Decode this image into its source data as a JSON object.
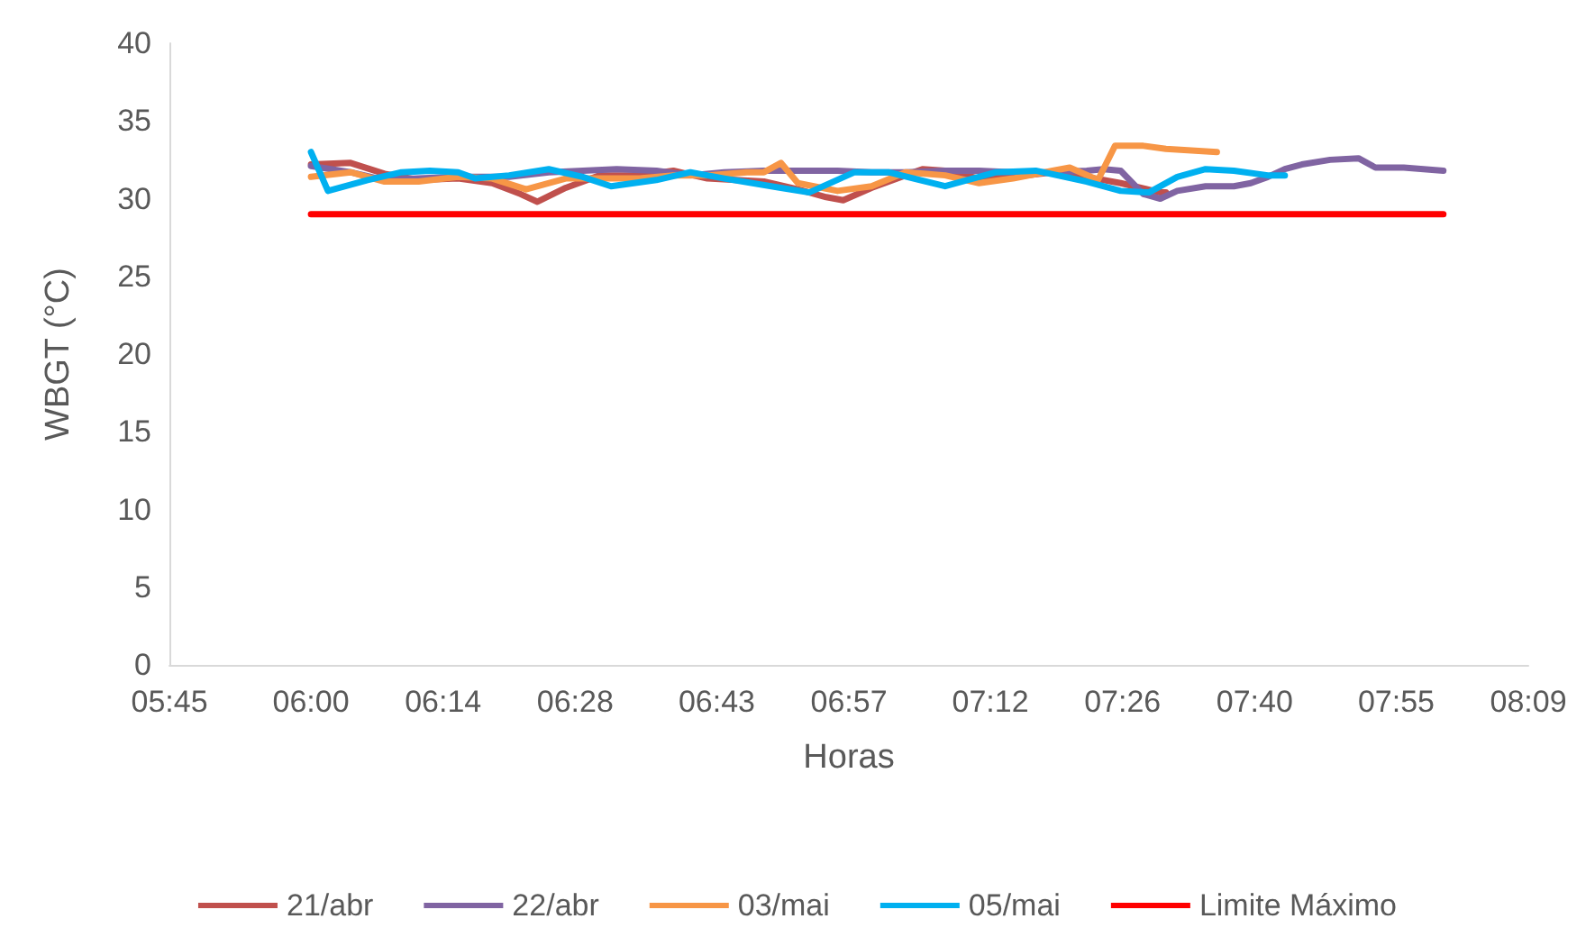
{
  "chart_data": {
    "type": "line",
    "xlabel": "Horas",
    "ylabel": "WBGT (°C)",
    "xlim": [
      5.75,
      8.15
    ],
    "xticks": [
      {
        "value": 5.75,
        "label": "05:45"
      },
      {
        "value": 6.0,
        "label": "06:00"
      },
      {
        "value": 6.2333,
        "label": "06:14"
      },
      {
        "value": 6.4667,
        "label": "06:28"
      },
      {
        "value": 6.7167,
        "label": "06:43"
      },
      {
        "value": 6.95,
        "label": "06:57"
      },
      {
        "value": 7.2,
        "label": "07:12"
      },
      {
        "value": 7.4333,
        "label": "07:26"
      },
      {
        "value": 7.6667,
        "label": "07:40"
      },
      {
        "value": 7.9167,
        "label": "07:55"
      },
      {
        "value": 8.15,
        "label": "08:09"
      }
    ],
    "ylim": [
      0,
      40
    ],
    "yticks": [
      0,
      5,
      10,
      15,
      20,
      25,
      30,
      35,
      40
    ],
    "grid": false,
    "legend": "bottom",
    "marker": "none",
    "line_style": "solid",
    "series": [
      {
        "name": "21/abr",
        "color": "#c0504d",
        "x": [
          6.0,
          6.07,
          6.13,
          6.19,
          6.26,
          6.32,
          6.37,
          6.4,
          6.45,
          6.51,
          6.58,
          6.64,
          6.7,
          6.8,
          6.86,
          6.91,
          6.94,
          6.99,
          7.05,
          7.08,
          7.12,
          7.18,
          7.24,
          7.31,
          7.37,
          7.43,
          7.5,
          7.51
        ],
        "values": [
          32.2,
          32.3,
          31.6,
          31.2,
          31.3,
          31.0,
          30.3,
          29.8,
          30.7,
          31.5,
          31.5,
          31.8,
          31.3,
          31.1,
          30.6,
          30.1,
          29.9,
          30.7,
          31.5,
          31.9,
          31.8,
          31.3,
          31.4,
          31.7,
          31.4,
          31.0,
          30.4,
          30.4
        ]
      },
      {
        "name": "22/abr",
        "color": "#8064a2",
        "x": [
          6.0,
          6.07,
          6.13,
          6.19,
          6.26,
          6.35,
          6.42,
          6.48,
          6.54,
          6.61,
          6.67,
          6.73,
          6.8,
          6.86,
          6.93,
          6.99,
          7.05,
          7.12,
          7.18,
          7.24,
          7.31,
          7.37,
          7.4,
          7.43,
          7.47,
          7.5,
          7.53,
          7.58,
          7.63,
          7.66,
          7.69,
          7.72,
          7.75,
          7.8,
          7.85,
          7.88,
          7.93,
          8.0
        ],
        "values": [
          32.1,
          31.7,
          31.2,
          31.3,
          31.4,
          31.4,
          31.7,
          31.8,
          31.9,
          31.8,
          31.5,
          31.7,
          31.8,
          31.8,
          31.8,
          31.7,
          31.7,
          31.8,
          31.8,
          31.7,
          31.7,
          31.8,
          31.9,
          31.8,
          30.3,
          30.0,
          30.5,
          30.8,
          30.8,
          31.0,
          31.4,
          31.9,
          32.2,
          32.5,
          32.6,
          32.0,
          32.0,
          31.8
        ]
      },
      {
        "name": "03/mai",
        "color": "#f79646",
        "x": [
          6.0,
          6.07,
          6.13,
          6.19,
          6.26,
          6.32,
          6.38,
          6.45,
          6.51,
          6.58,
          6.64,
          6.7,
          6.77,
          6.8,
          6.83,
          6.86,
          6.93,
          6.99,
          7.05,
          7.12,
          7.18,
          7.24,
          7.31,
          7.34,
          7.39,
          7.42,
          7.47,
          7.51,
          7.6
        ],
        "values": [
          31.4,
          31.7,
          31.1,
          31.1,
          31.4,
          31.3,
          30.6,
          31.3,
          31.3,
          31.3,
          31.5,
          31.5,
          31.7,
          31.7,
          32.3,
          31.0,
          30.5,
          30.8,
          31.7,
          31.5,
          31.0,
          31.3,
          31.8,
          32.0,
          31.2,
          33.4,
          33.4,
          33.2,
          33.0
        ]
      },
      {
        "name": "05/mai",
        "color": "#00b0f0",
        "x": [
          6.0,
          6.03,
          6.1,
          6.16,
          6.21,
          6.26,
          6.29,
          6.35,
          6.42,
          6.48,
          6.53,
          6.61,
          6.67,
          6.73,
          6.83,
          6.88,
          6.96,
          7.02,
          7.12,
          7.21,
          7.28,
          7.37,
          7.43,
          7.48,
          7.53,
          7.58,
          7.63,
          7.69,
          7.72
        ],
        "values": [
          33.0,
          30.5,
          31.2,
          31.7,
          31.8,
          31.7,
          31.3,
          31.5,
          31.9,
          31.4,
          30.8,
          31.2,
          31.7,
          31.3,
          30.7,
          30.4,
          31.7,
          31.7,
          30.8,
          31.7,
          31.8,
          31.1,
          30.5,
          30.4,
          31.4,
          31.9,
          31.8,
          31.5,
          31.5
        ]
      },
      {
        "name": "Limite Máximo",
        "color": "#ff0000",
        "x": [
          6.0,
          8.0
        ],
        "values": [
          29,
          29
        ]
      }
    ]
  }
}
